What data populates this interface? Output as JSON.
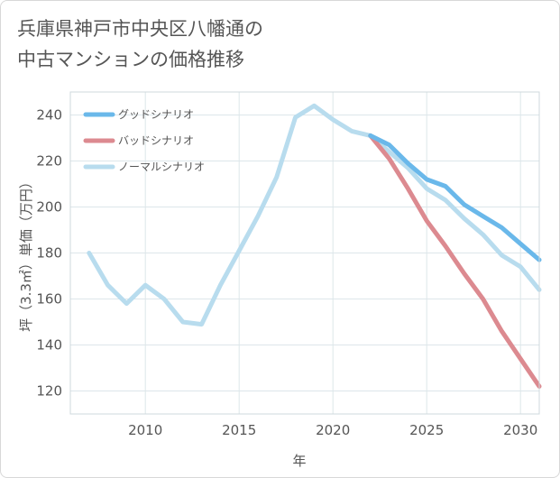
{
  "title_lines": [
    "兵庫県神戸市中央区八幡通の",
    "中古マンションの価格推移"
  ],
  "chart_data": {
    "type": "line",
    "title": "兵庫県神戸市中央区八幡通の中古マンションの価格推移",
    "xlabel": "年",
    "ylabel": "坪（3.3㎡）単価（万円）",
    "xlim": [
      2006,
      2031
    ],
    "ylim": [
      110,
      250
    ],
    "x_ticks": [
      2010,
      2015,
      2020,
      2025,
      2030
    ],
    "y_ticks": [
      120,
      140,
      160,
      180,
      200,
      220,
      240
    ],
    "grid": true,
    "legend_position": "top-left",
    "series": [
      {
        "name": "グッドシナリオ",
        "color": "#6ab8ea",
        "x": [
          2022,
          2023,
          2024,
          2025,
          2026,
          2027,
          2028,
          2029,
          2030,
          2031
        ],
        "values": [
          231,
          227,
          219,
          212,
          209,
          201,
          196,
          191,
          184,
          177
        ]
      },
      {
        "name": "バッドシナリオ",
        "color": "#dc8a90",
        "x": [
          2022,
          2023,
          2024,
          2025,
          2026,
          2027,
          2028,
          2029,
          2030,
          2031
        ],
        "values": [
          231,
          221,
          208,
          194,
          183,
          171,
          160,
          146,
          134,
          122
        ]
      },
      {
        "name": "ノーマルシナリオ",
        "color": "#b8dcee",
        "x": [
          2007,
          2008,
          2009,
          2010,
          2011,
          2012,
          2013,
          2014,
          2015,
          2016,
          2017,
          2018,
          2019,
          2020,
          2021,
          2022,
          2023,
          2024,
          2025,
          2026,
          2027,
          2028,
          2029,
          2030,
          2031
        ],
        "values": [
          180,
          166,
          158,
          166,
          160,
          150,
          149,
          166,
          181,
          196,
          213,
          239,
          244,
          238,
          233,
          231,
          224,
          217,
          208,
          203,
          195,
          188,
          179,
          174,
          164
        ]
      }
    ]
  }
}
